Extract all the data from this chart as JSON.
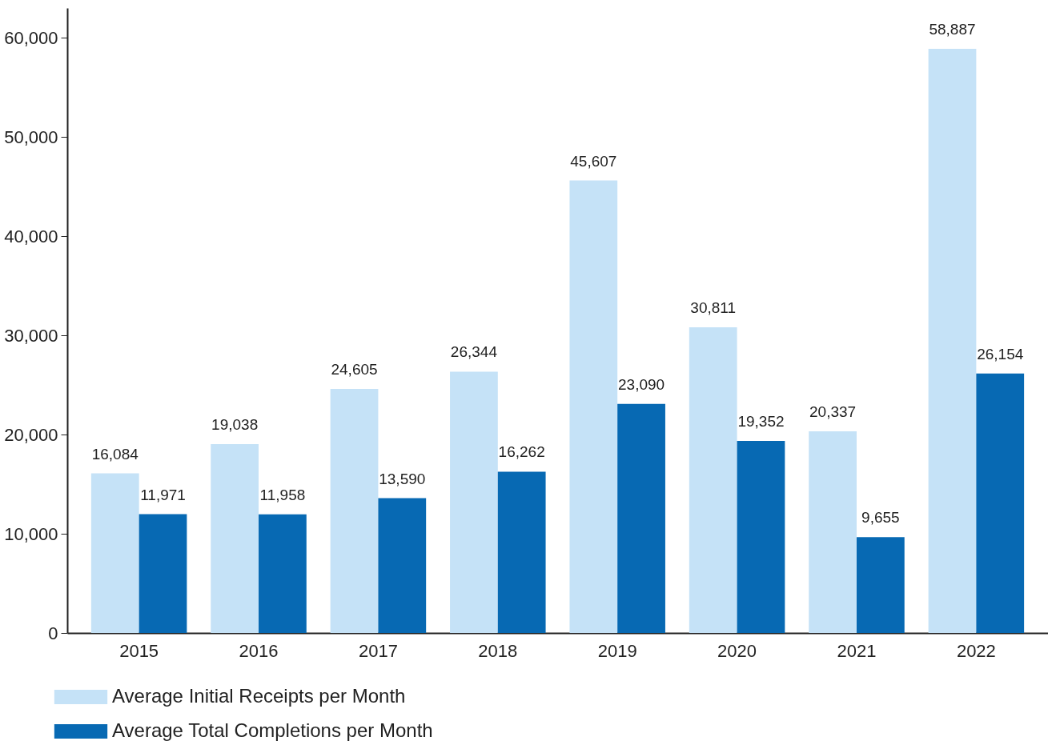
{
  "chart_data": {
    "type": "bar",
    "categories": [
      "2015",
      "2016",
      "2017",
      "2018",
      "2019",
      "2020",
      "2021",
      "2022"
    ],
    "series": [
      {
        "name": "Average Initial Receipts per Month",
        "color": "#c5e2f7",
        "values": [
          16084,
          19038,
          24605,
          26344,
          45607,
          30811,
          20337,
          58887
        ],
        "value_labels": [
          "16,084",
          "19,038",
          "24,605",
          "26,344",
          "45,607",
          "30,811",
          "20,337",
          "58,887"
        ]
      },
      {
        "name": "Average Total Completions per Month",
        "color": "#0769b3",
        "values": [
          11971,
          11958,
          13590,
          16262,
          23090,
          19352,
          9655,
          26154
        ],
        "value_labels": [
          "11,971",
          "11,958",
          "13,590",
          "16,262",
          "23,090",
          "19,352",
          "9,655",
          "26,154"
        ]
      }
    ],
    "ylim": [
      0,
      63000
    ],
    "yticks": [
      0,
      {
        "value": 10000,
        "label": "10,000"
      },
      {
        "value": 20000,
        "label": "20,000"
      },
      {
        "value": 30000,
        "label": "30,000"
      },
      {
        "value": 40000,
        "label": "40,000"
      },
      {
        "value": 50000,
        "label": "50,000"
      },
      {
        "value": 60000,
        "label": "60,000"
      }
    ],
    "grid": false,
    "legend": "bottom"
  }
}
